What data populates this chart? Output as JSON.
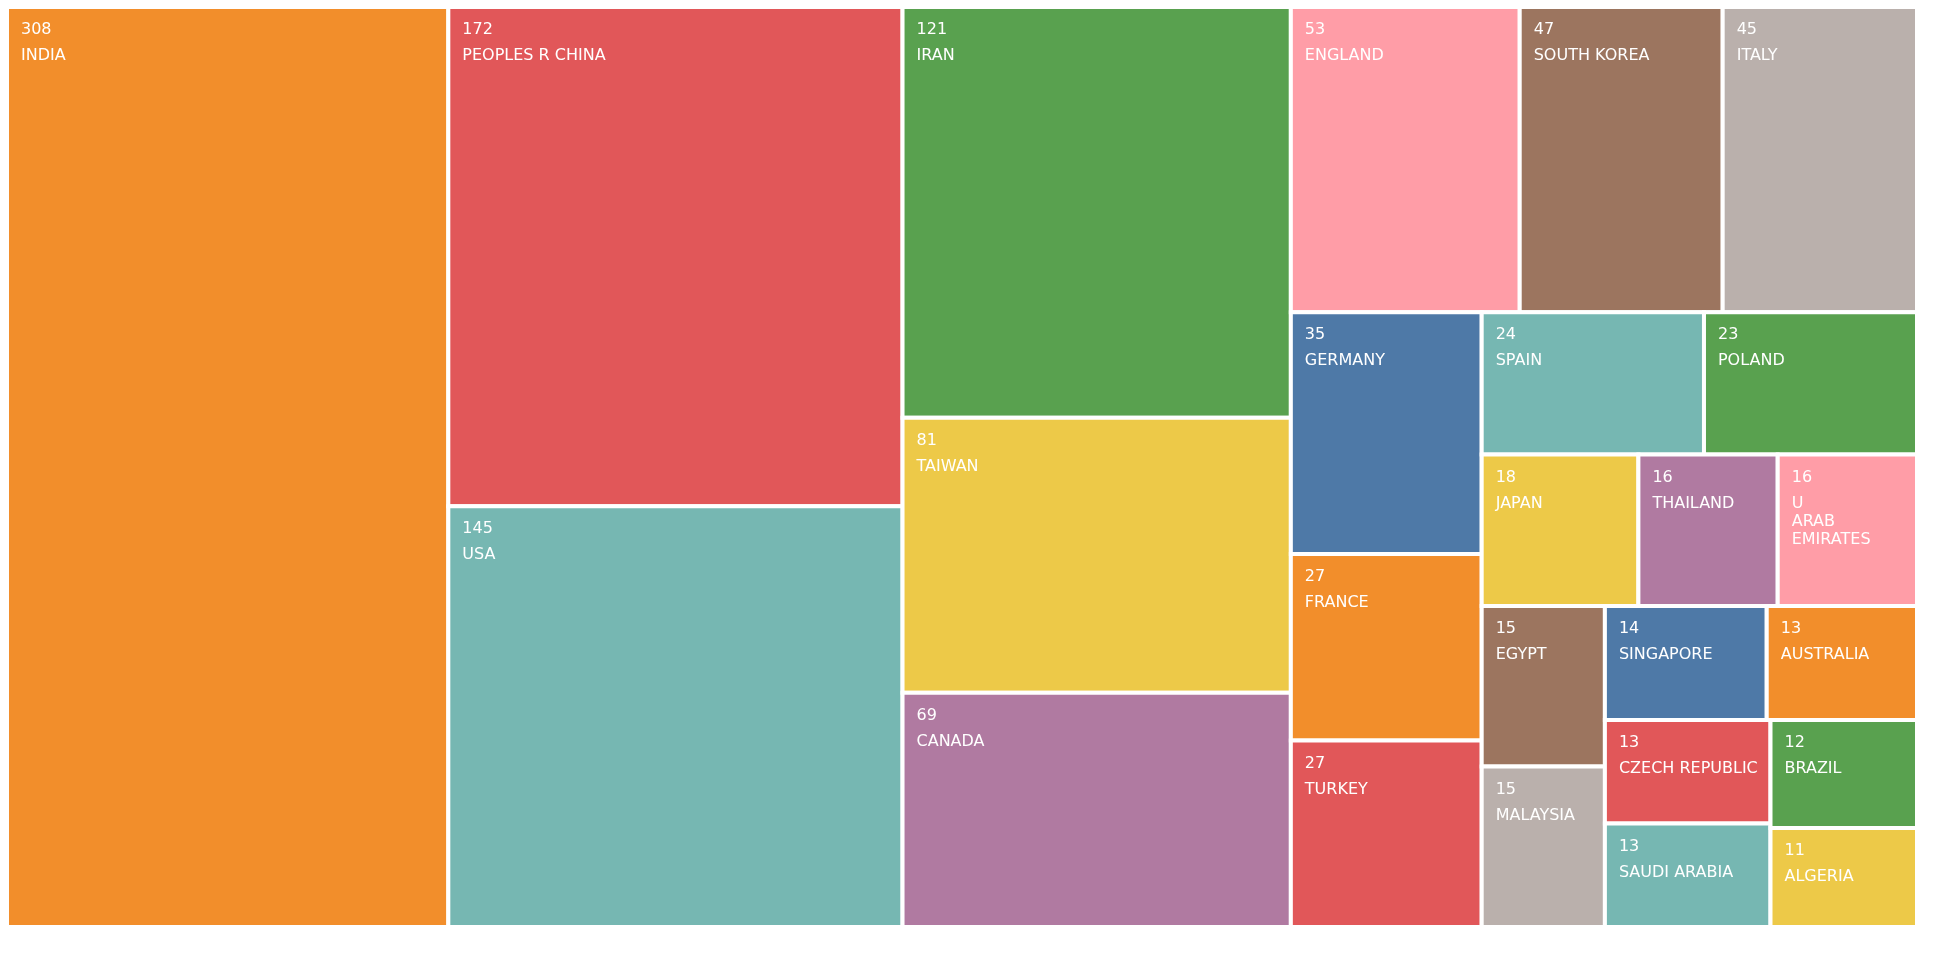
{
  "chart_data": {
    "type": "other",
    "categories": [
      "INDIA",
      "PEOPLES R CHINA",
      "USA",
      "IRAN",
      "TAIWAN",
      "CANADA",
      "ENGLAND",
      "SOUTH KOREA",
      "ITALY",
      "GERMANY",
      "FRANCE",
      "TURKEY",
      "SPAIN",
      "POLAND",
      "JAPAN",
      "THAILAND",
      "U ARAB EMIRATES",
      "EGYPT",
      "MALAYSIA",
      "SINGAPORE",
      "AUSTRALIA",
      "CZECH REPUBLIC",
      "SAUDI ARABIA",
      "BRAZIL",
      "ALGERIA"
    ],
    "values": [
      308,
      172,
      145,
      121,
      81,
      69,
      53,
      47,
      45,
      35,
      27,
      27,
      24,
      23,
      18,
      16,
      16,
      15,
      15,
      14,
      13,
      13,
      13,
      12,
      11
    ],
    "colors": [
      "#f28e2b",
      "#e15759",
      "#76b7b2",
      "#59a14f",
      "#edc948",
      "#b07aa1",
      "#ff9da7",
      "#9c755f",
      "#bab0ac",
      "#4e79a7",
      "#f28e2b",
      "#e15759",
      "#76b7b2",
      "#59a14f",
      "#edc948",
      "#b07aa1",
      "#ff9da7",
      "#9c755f",
      "#bab0ac",
      "#4e79a7",
      "#f28e2b",
      "#e15759",
      "#76b7b2",
      "#59a14f",
      "#edc948"
    ],
    "data_labels": true
  }
}
